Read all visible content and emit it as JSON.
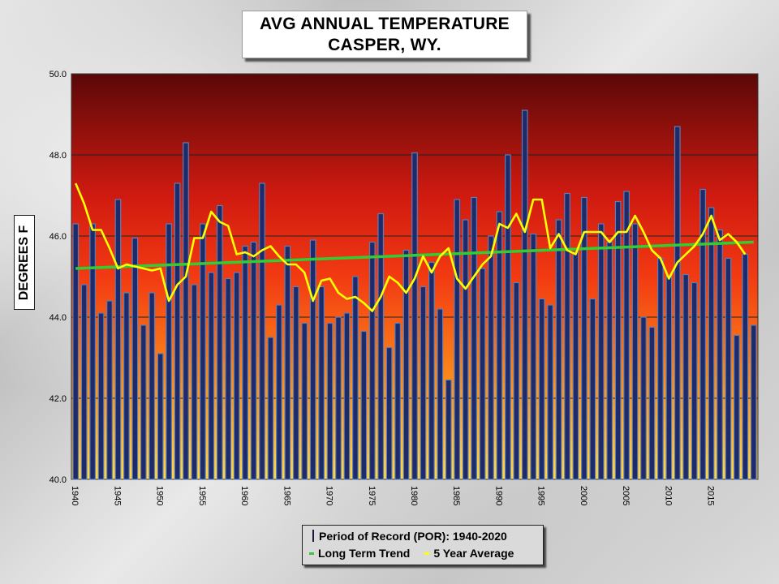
{
  "title": {
    "line1": "AVG ANNUAL TEMPERATURE",
    "line2": "CASPER, WY."
  },
  "chart_data": {
    "type": "bar",
    "title": "AVG ANNUAL TEMPERATURE CASPER, WY.",
    "ylabel": "DEGREES F",
    "xlabel": "",
    "ylim": [
      40.0,
      50.0
    ],
    "yticks": [
      "40.0",
      "42.0",
      "44.0",
      "46.0",
      "48.0",
      "50.0"
    ],
    "xticks": [
      "1940",
      "1945",
      "1950",
      "1955",
      "1960",
      "1965",
      "1970",
      "1975",
      "1980",
      "1985",
      "1990",
      "1995",
      "2000",
      "2005",
      "2010",
      "2015"
    ],
    "grid": true,
    "legend_position": "bottom-center",
    "years": [
      1940,
      1941,
      1942,
      1943,
      1944,
      1945,
      1946,
      1947,
      1948,
      1949,
      1950,
      1951,
      1952,
      1953,
      1954,
      1955,
      1956,
      1957,
      1958,
      1959,
      1960,
      1961,
      1962,
      1963,
      1964,
      1965,
      1966,
      1967,
      1968,
      1969,
      1970,
      1971,
      1972,
      1973,
      1974,
      1975,
      1976,
      1977,
      1978,
      1979,
      1980,
      1981,
      1982,
      1983,
      1984,
      1985,
      1986,
      1987,
      1988,
      1989,
      1990,
      1991,
      1992,
      1993,
      1994,
      1995,
      1996,
      1997,
      1998,
      1999,
      2000,
      2001,
      2002,
      2003,
      2004,
      2005,
      2006,
      2007,
      2008,
      2009,
      2010,
      2011,
      2012,
      2013,
      2014,
      2015,
      2016,
      2017,
      2018,
      2019,
      2020
    ],
    "series": [
      {
        "name": "Period of Record (POR): 1940-2020",
        "type": "bar",
        "values": [
          46.3,
          44.8,
          46.3,
          44.1,
          44.4,
          46.9,
          44.6,
          45.95,
          43.8,
          44.6,
          43.1,
          46.3,
          47.3,
          48.3,
          44.8,
          46.3,
          45.1,
          46.75,
          44.95,
          45.1,
          45.75,
          45.85,
          47.3,
          43.5,
          44.3,
          45.75,
          44.75,
          43.85,
          45.9,
          44.75,
          43.85,
          44.0,
          44.1,
          45.0,
          43.65,
          45.85,
          46.55,
          43.25,
          43.85,
          45.65,
          48.05,
          44.75,
          45.35,
          44.2,
          42.45,
          46.9,
          46.4,
          46.95,
          45.2,
          46.0,
          46.6,
          48.0,
          44.85,
          49.1,
          46.05,
          44.45,
          44.3,
          46.4,
          47.05,
          45.6,
          46.95,
          44.45,
          46.3,
          45.85,
          46.85,
          47.1,
          46.3,
          44.0,
          43.75,
          45.45,
          45.0,
          48.7,
          45.05,
          44.85,
          47.15,
          46.7,
          46.15,
          45.45,
          43.55,
          45.55,
          43.8
        ]
      },
      {
        "name": "Long Term Trend",
        "type": "line",
        "color": "#33cc33",
        "start": 45.2,
        "end": 45.85
      },
      {
        "name": "5 Year Average",
        "type": "line",
        "color": "#ffff00",
        "values": [
          47.3,
          46.8,
          46.15,
          46.15,
          45.7,
          45.2,
          45.3,
          45.25,
          45.2,
          45.15,
          45.2,
          44.4,
          44.8,
          45.0,
          45.95,
          45.95,
          46.6,
          46.35,
          46.25,
          45.55,
          45.6,
          45.5,
          45.65,
          45.75,
          45.5,
          45.3,
          45.3,
          45.1,
          44.4,
          44.9,
          44.95,
          44.6,
          44.45,
          44.5,
          44.35,
          44.15,
          44.5,
          45.0,
          44.85,
          44.6,
          44.95,
          45.5,
          45.1,
          45.5,
          45.7,
          44.95,
          44.7,
          45.0,
          45.3,
          45.5,
          46.3,
          46.2,
          46.55,
          46.1,
          46.9,
          46.9,
          45.7,
          46.05,
          45.65,
          45.55,
          46.1,
          46.1,
          46.1,
          45.85,
          46.1,
          46.1,
          46.5,
          46.1,
          45.65,
          45.45,
          44.95,
          45.35,
          45.55,
          45.75,
          46.05,
          46.5,
          45.9,
          46.05,
          45.85,
          45.55
        ]
      }
    ]
  },
  "legend": {
    "bar_label": "Period of Record (POR): 1940-2020",
    "trend_label": "Long Term Trend",
    "avg_label": "5 Year Average"
  },
  "colors": {
    "bar_fill": "#1f2a6b",
    "bar_edge": "#5a7fb5",
    "trend": "#33cc33",
    "avg": "#ffff00",
    "plot_top": "#5a0a0a",
    "plot_mid": "#f02a14",
    "plot_bottom": "#ffd24a"
  }
}
